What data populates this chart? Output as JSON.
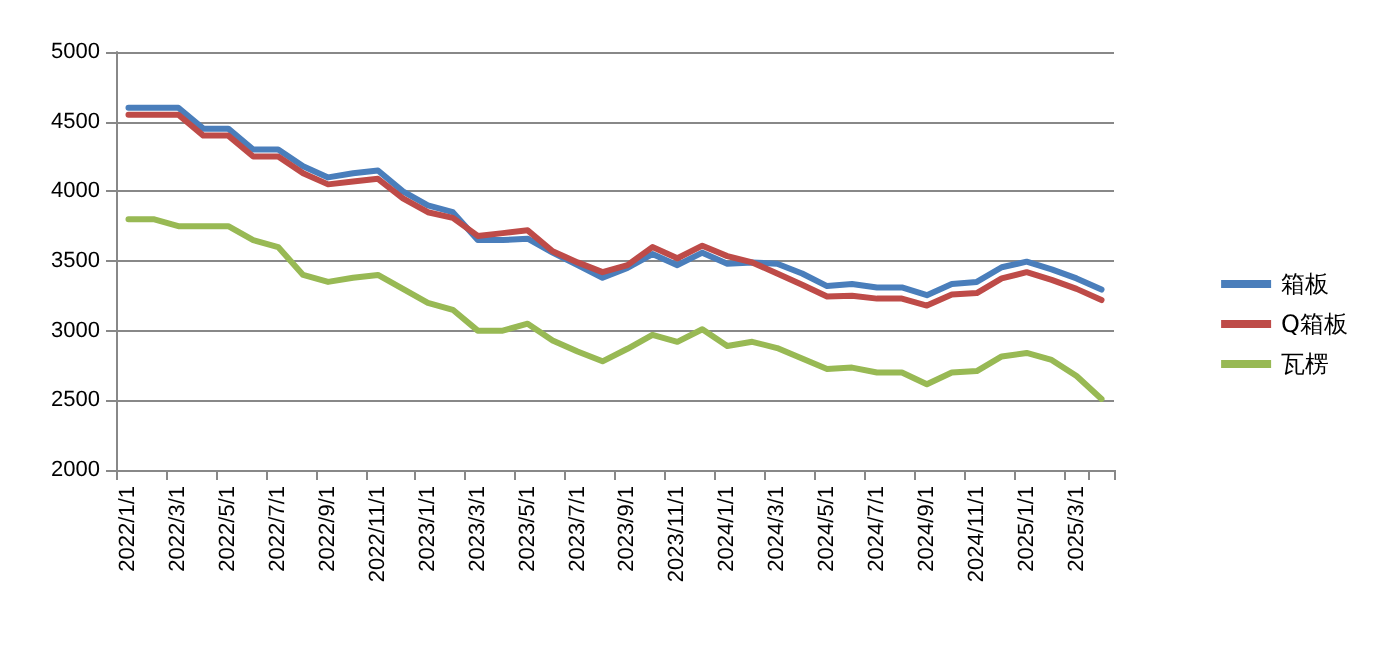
{
  "chart_data": {
    "type": "line",
    "categories": [
      "2022/1/1",
      null,
      "2022/3/1",
      null,
      "2022/5/1",
      null,
      "2022/7/1",
      null,
      "2022/9/1",
      null,
      "2022/11/1",
      null,
      "2023/1/1",
      null,
      "2023/3/1",
      null,
      "2023/5/1",
      null,
      "2023/7/1",
      null,
      "2023/9/1",
      null,
      "2023/11/1",
      null,
      "2024/1/1",
      null,
      "2024/3/1",
      null,
      "2024/5/1",
      null,
      "2024/7/1",
      null,
      "2024/9/1",
      null,
      "2024/11/1",
      null,
      "2025/1/1",
      null,
      "2025/3/1",
      null
    ],
    "series": [
      {
        "name": "箱板",
        "color": "#4a7ebb",
        "values": [
          4600,
          4600,
          4600,
          4450,
          4450,
          4300,
          4300,
          4180,
          4100,
          4130,
          4150,
          4000,
          3900,
          3850,
          3650,
          3650,
          3660,
          3560,
          3470,
          3380,
          3450,
          3550,
          3470,
          3560,
          3480,
          3490,
          3480,
          3410,
          3320,
          3335,
          3310,
          3310,
          3255,
          3335,
          3350,
          3455,
          3495,
          3440,
          3375,
          3295
        ]
      },
      {
        "name": "Q箱板",
        "color": "#be4b48",
        "values": [
          4550,
          4550,
          4550,
          4400,
          4400,
          4250,
          4250,
          4130,
          4050,
          4070,
          4090,
          3950,
          3850,
          3810,
          3680,
          3700,
          3720,
          3570,
          3490,
          3420,
          3470,
          3600,
          3520,
          3610,
          3535,
          3490,
          3410,
          3330,
          3245,
          3250,
          3230,
          3230,
          3180,
          3260,
          3270,
          3375,
          3420,
          3365,
          3300,
          3220
        ]
      },
      {
        "name": "瓦楞",
        "color": "#98b954",
        "values": [
          3800,
          3800,
          3750,
          3750,
          3750,
          3650,
          3600,
          3400,
          3350,
          3380,
          3400,
          3300,
          3200,
          3150,
          3000,
          3000,
          3050,
          2930,
          2850,
          2780,
          2870,
          2970,
          2920,
          3010,
          2890,
          2920,
          2875,
          2800,
          2725,
          2735,
          2700,
          2700,
          2615,
          2700,
          2710,
          2815,
          2840,
          2790,
          2675,
          2510
        ]
      }
    ],
    "ylim": [
      2000,
      5000
    ],
    "yticks": [
      2000,
      2500,
      3000,
      3500,
      4000,
      4500,
      5000
    ],
    "grid": "y",
    "legend": "right",
    "marker": "none",
    "line_style": "solid"
  }
}
